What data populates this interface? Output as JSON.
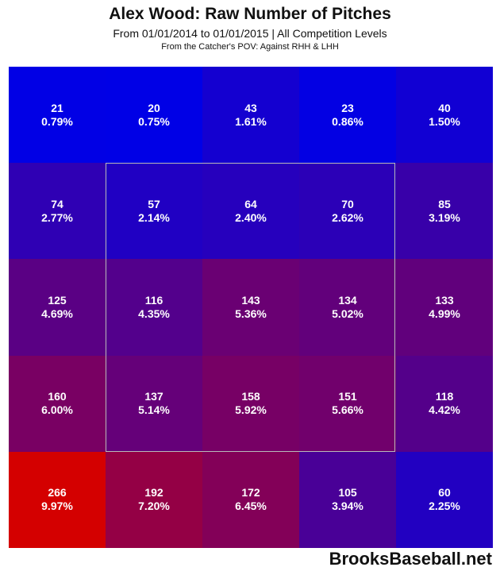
{
  "header": {
    "title": "Alex Wood: Raw Number of Pitches",
    "subtitle": "From 01/01/2014 to 01/01/2015 | All Competition Levels",
    "subtitle2": "From the Catcher's POV:   Against RHH & LHH"
  },
  "credit": "BrooksBaseball.net",
  "chart_data": {
    "type": "heatmap",
    "title": "Alex Wood: Raw Number of Pitches",
    "rows": 5,
    "cols": 5,
    "counts": [
      [
        21,
        20,
        43,
        23,
        40
      ],
      [
        74,
        57,
        64,
        70,
        85
      ],
      [
        125,
        116,
        143,
        134,
        133
      ],
      [
        160,
        137,
        158,
        151,
        118
      ],
      [
        266,
        192,
        172,
        105,
        60
      ]
    ],
    "percents": [
      [
        "0.79%",
        "0.75%",
        "1.61%",
        "0.86%",
        "1.50%"
      ],
      [
        "2.77%",
        "2.14%",
        "2.40%",
        "2.62%",
        "3.19%"
      ],
      [
        "4.69%",
        "4.35%",
        "5.36%",
        "5.02%",
        "4.99%"
      ],
      [
        "6.00%",
        "5.14%",
        "5.92%",
        "5.66%",
        "4.42%"
      ],
      [
        "9.97%",
        "7.20%",
        "6.45%",
        "3.94%",
        "2.25%"
      ]
    ],
    "strike_zone": "inner 3x3 cells",
    "colors": {
      "low": "#0000e6",
      "high": "#d40000"
    }
  }
}
